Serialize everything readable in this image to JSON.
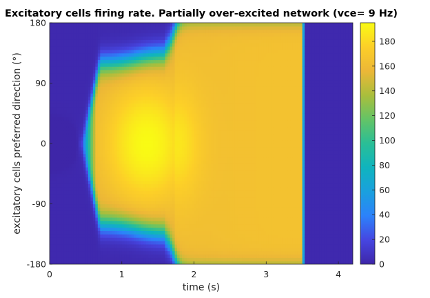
{
  "chart_data": {
    "type": "heatmap",
    "title": "Excitatory cells firing rate. Partially over-excited network (vce= 9 Hz)",
    "xlabel": "time (s)",
    "ylabel": "excitatory cells preferred direction (°)",
    "xlim": [
      0,
      4.2
    ],
    "ylim": [
      -180,
      180
    ],
    "xticks": [
      0,
      1,
      2,
      3,
      4
    ],
    "yticks": [
      -180,
      -90,
      0,
      90,
      180
    ],
    "colorbar": {
      "ticks": [
        0,
        20,
        40,
        60,
        80,
        100,
        120,
        140,
        160,
        180
      ],
      "clim": [
        0,
        195
      ],
      "colormap": "parula"
    },
    "series": [
      {
        "name": "",
        "description_points": [
          {
            "time": 0.5,
            "direction": 0,
            "rate": 25
          },
          {
            "time": 1.0,
            "direction": 0,
            "rate": 175
          },
          {
            "time": 1.4,
            "direction": 0,
            "rate": 195
          },
          {
            "time": 1.0,
            "direction": 90,
            "rate": 5
          },
          {
            "time": 2.0,
            "direction": 0,
            "rate": 160
          },
          {
            "time": 3.0,
            "direction": 180,
            "rate": 165
          },
          {
            "time": 3.5,
            "direction": 0,
            "rate": 2
          },
          {
            "time": 4.0,
            "direction": 0,
            "rate": 2
          }
        ]
      }
    ]
  }
}
